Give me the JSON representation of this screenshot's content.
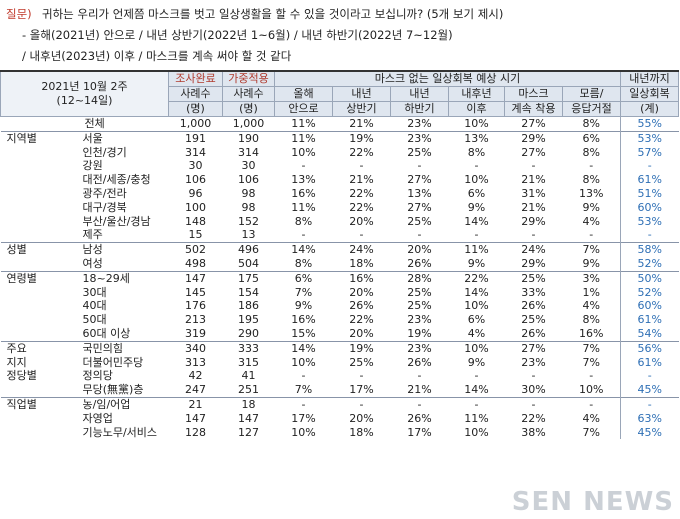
{
  "question": {
    "label": "질문)",
    "line1": "귀하는 우리가 언제쯤 마스크를 벗고 일상생활을 할 수 있을 것이라고 보십니까? (5개 보기 제시)",
    "line2": "- 올해(2021년) 안으로 / 내년 상반기(2022년 1~6월) / 내년 하반기(2022년 7~12월)",
    "line3": "/ 내후년(2023년) 이후 / 마스크를 계속 써야 할 것 같다"
  },
  "header": {
    "period_line1": "2021년 10월 2주",
    "period_line2": "(12~14일)",
    "col_survey_top": "조사완료",
    "col_survey_mid": "사례수",
    "col_survey_bot": "(명)",
    "col_weight_top": "가중적용",
    "col_weight_mid": "사례수",
    "col_weight_bot": "(명)",
    "group_title": "마스크 없는 일상회복 예상 시기",
    "sub1_a": "올해",
    "sub1_b": "안으로",
    "sub2_a": "내년",
    "sub2_b": "상반기",
    "sub3_a": "내년",
    "sub3_b": "하반기",
    "sub4_a": "내후년",
    "sub4_b": "이후",
    "sub5_a": "마스크",
    "sub5_b": "계속 착용",
    "sub6_a": "모름/",
    "sub6_b": "응답거절",
    "last_a": "내년까지",
    "last_b": "일상회복",
    "last_c": "(계)"
  },
  "rows": [
    {
      "g": "",
      "s": "전체",
      "v": [
        "1,000",
        "1,000",
        "11%",
        "21%",
        "23%",
        "10%",
        "27%",
        "8%",
        "55%"
      ],
      "cls": "total"
    },
    {
      "g": "지역별",
      "s": "서울",
      "v": [
        "191",
        "190",
        "11%",
        "19%",
        "23%",
        "13%",
        "29%",
        "6%",
        "53%"
      ],
      "cls": "sep"
    },
    {
      "g": "",
      "s": "인천/경기",
      "v": [
        "314",
        "314",
        "10%",
        "22%",
        "25%",
        "8%",
        "27%",
        "8%",
        "57%"
      ],
      "cls": ""
    },
    {
      "g": "",
      "s": "강원",
      "v": [
        "30",
        "30",
        "-",
        "-",
        "-",
        "-",
        "-",
        "-",
        "-"
      ],
      "cls": ""
    },
    {
      "g": "",
      "s": "대전/세종/충청",
      "v": [
        "106",
        "106",
        "13%",
        "21%",
        "27%",
        "10%",
        "21%",
        "8%",
        "61%"
      ],
      "cls": ""
    },
    {
      "g": "",
      "s": "광주/전라",
      "v": [
        "96",
        "98",
        "16%",
        "22%",
        "13%",
        "6%",
        "31%",
        "13%",
        "51%"
      ],
      "cls": ""
    },
    {
      "g": "",
      "s": "대구/경북",
      "v": [
        "100",
        "98",
        "11%",
        "22%",
        "27%",
        "9%",
        "21%",
        "9%",
        "60%"
      ],
      "cls": ""
    },
    {
      "g": "",
      "s": "부산/울산/경남",
      "v": [
        "148",
        "152",
        "8%",
        "20%",
        "25%",
        "14%",
        "29%",
        "4%",
        "53%"
      ],
      "cls": ""
    },
    {
      "g": "",
      "s": "제주",
      "v": [
        "15",
        "13",
        "-",
        "-",
        "-",
        "-",
        "-",
        "-",
        "-"
      ],
      "cls": ""
    },
    {
      "g": "성별",
      "s": "남성",
      "v": [
        "502",
        "496",
        "14%",
        "24%",
        "20%",
        "11%",
        "24%",
        "7%",
        "58%"
      ],
      "cls": "sep"
    },
    {
      "g": "",
      "s": "여성",
      "v": [
        "498",
        "504",
        "8%",
        "18%",
        "26%",
        "9%",
        "29%",
        "9%",
        "52%"
      ],
      "cls": ""
    },
    {
      "g": "연령별",
      "s": "18~29세",
      "v": [
        "147",
        "175",
        "6%",
        "16%",
        "28%",
        "22%",
        "25%",
        "3%",
        "50%"
      ],
      "cls": "sep"
    },
    {
      "g": "",
      "s": "30대",
      "v": [
        "145",
        "154",
        "7%",
        "20%",
        "25%",
        "14%",
        "33%",
        "1%",
        "52%"
      ],
      "cls": ""
    },
    {
      "g": "",
      "s": "40대",
      "v": [
        "176",
        "186",
        "9%",
        "26%",
        "25%",
        "10%",
        "26%",
        "4%",
        "60%"
      ],
      "cls": ""
    },
    {
      "g": "",
      "s": "50대",
      "v": [
        "213",
        "195",
        "16%",
        "22%",
        "23%",
        "6%",
        "25%",
        "8%",
        "61%"
      ],
      "cls": ""
    },
    {
      "g": "",
      "s": "60대 이상",
      "v": [
        "319",
        "290",
        "15%",
        "20%",
        "19%",
        "4%",
        "26%",
        "16%",
        "54%"
      ],
      "cls": ""
    },
    {
      "g": "주요",
      "s": "국민의힘",
      "v": [
        "340",
        "333",
        "14%",
        "19%",
        "23%",
        "10%",
        "27%",
        "7%",
        "56%"
      ],
      "cls": "sep"
    },
    {
      "g": "지지",
      "s": "더불어민주당",
      "v": [
        "313",
        "315",
        "10%",
        "25%",
        "26%",
        "9%",
        "23%",
        "7%",
        "61%"
      ],
      "cls": ""
    },
    {
      "g": "정당별",
      "s": "정의당",
      "v": [
        "42",
        "41",
        "-",
        "-",
        "-",
        "-",
        "-",
        "-",
        "-"
      ],
      "cls": ""
    },
    {
      "g": "",
      "s": "무당(無黨)층",
      "v": [
        "247",
        "251",
        "7%",
        "17%",
        "21%",
        "14%",
        "30%",
        "10%",
        "45%"
      ],
      "cls": ""
    },
    {
      "g": "직업별",
      "s": "농/임/어업",
      "v": [
        "21",
        "18",
        "-",
        "-",
        "-",
        "-",
        "-",
        "-",
        "-"
      ],
      "cls": "sep"
    },
    {
      "g": "",
      "s": "자영업",
      "v": [
        "147",
        "147",
        "17%",
        "20%",
        "26%",
        "11%",
        "22%",
        "4%",
        "63%"
      ],
      "cls": ""
    },
    {
      "g": "",
      "s": "기능노무/서비스",
      "v": [
        "128",
        "127",
        "10%",
        "18%",
        "17%",
        "10%",
        "38%",
        "7%",
        "45%"
      ],
      "cls": ""
    }
  ],
  "watermark": "SEN NEWS"
}
